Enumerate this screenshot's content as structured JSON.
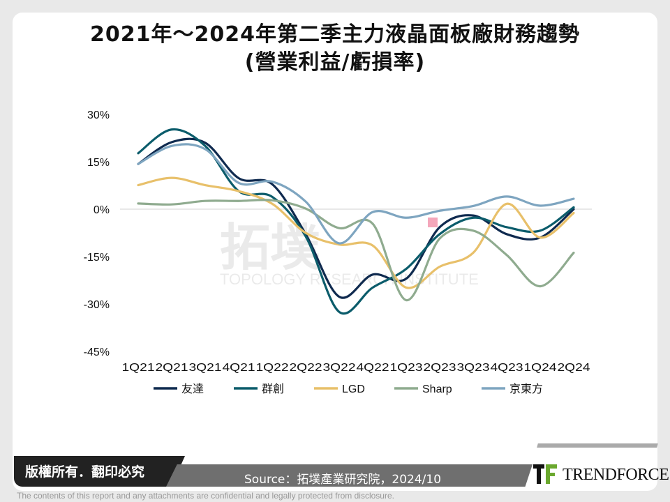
{
  "title_lines": [
    "2021年～2024年第二季主力液晶面板廠財務趨勢",
    "(營業利益/虧損率)"
  ],
  "chart_data": {
    "type": "line",
    "title": "2021年～2024年第二季主力液晶面板廠財務趨勢 (營業利益/虧損率)",
    "xlabel": "",
    "ylabel": "",
    "categories": [
      "1Q21",
      "2Q21",
      "3Q21",
      "4Q21",
      "1Q22",
      "2Q22",
      "3Q22",
      "4Q22",
      "1Q23",
      "2Q23",
      "3Q23",
      "4Q23",
      "1Q24",
      "2Q24"
    ],
    "ylim": [
      -45,
      30
    ],
    "yticks": [
      30,
      15,
      0,
      -15,
      -30,
      -45
    ],
    "ytick_labels": [
      "30%",
      "15%",
      "0%",
      "-15%",
      "-30%",
      "-45%"
    ],
    "grid": false,
    "smoothed": true,
    "legend_position": "bottom",
    "series": [
      {
        "name": "友達",
        "color": "#0f2a4f",
        "values": [
          14.3,
          21.2,
          21.0,
          9.8,
          7.9,
          -7.9,
          -27.7,
          -20.7,
          -22.0,
          -5.7,
          -2.0,
          -7.9,
          -9.0,
          0.0
        ]
      },
      {
        "name": "群創",
        "color": "#0b5c6b",
        "values": [
          17.7,
          25.2,
          20.0,
          5.7,
          3.9,
          -8.6,
          -32.5,
          -24.8,
          -18.9,
          -7.9,
          -2.7,
          -5.7,
          -6.8,
          0.6
        ]
      },
      {
        "name": "LGD",
        "color": "#e8c06a",
        "values": [
          7.6,
          9.9,
          7.6,
          5.7,
          1.7,
          -7.5,
          -11.2,
          -11.5,
          -24.8,
          -18.2,
          -13.8,
          1.7,
          -9.0,
          -1.2
        ]
      },
      {
        "name": "Sharp",
        "color": "#8fab8f",
        "values": [
          1.8,
          1.5,
          2.6,
          2.6,
          2.8,
          0.2,
          -6.0,
          -4.6,
          -28.8,
          -9.3,
          -6.8,
          -14.5,
          -24.4,
          -13.8
        ]
      },
      {
        "name": "京東方",
        "color": "#7ea5c0",
        "values": [
          14.3,
          20.0,
          19.0,
          8.3,
          8.7,
          2.4,
          -10.8,
          -0.9,
          -2.7,
          -0.5,
          1.0,
          4.0,
          1.1,
          3.3
        ]
      }
    ]
  },
  "watermark": {
    "cn": "拓墣",
    "en": "TOPOLOGY RESEARCH INSTITUTE"
  },
  "footer": {
    "copyright": "版權所有．翻印必究",
    "source": "Source：拓墣產業研究院，2024/10",
    "logo": "TRENDFORCE",
    "disclaimer": "The contents of this report and any attachments are confidential and legally protected from disclosure."
  },
  "colors": {
    "zero_line": "#d0d0d0",
    "marker": "#f4a7bb",
    "logo_green": "#6aa82e"
  }
}
